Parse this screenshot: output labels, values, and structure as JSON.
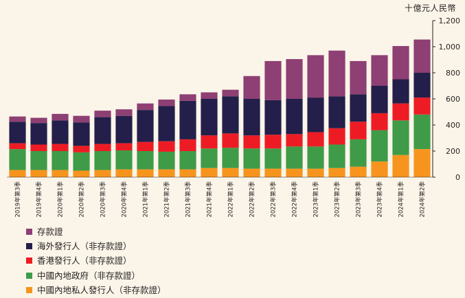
{
  "chart_data": {
    "type": "bar",
    "stacked": true,
    "unit_label": "十億元人民幣",
    "categories": [
      "2019年第3季",
      "2019年第4季",
      "2020年第1季",
      "2020年第2季",
      "2020年第3季",
      "2020年第4季",
      "2021年第1季",
      "2021年第2季",
      "2021年第3季",
      "2021年第4季",
      "2022年第1季",
      "2022年第2季",
      "2022年第3季",
      "2022年第4季",
      "2023年第1季",
      "2023年第2季",
      "2023年第3季",
      "2023年第4季",
      "2024年第1季",
      "2024年第2季"
    ],
    "y_ticks": [
      "0",
      "200",
      "400",
      "600",
      "800",
      "1,000",
      "1,200"
    ],
    "ylim": [
      0,
      1200
    ],
    "grid": false,
    "series": [
      {
        "name": "中國內地私人發行人（非存款證）",
        "color": "#f7941d",
        "values": [
          55,
          55,
          55,
          50,
          55,
          60,
          60,
          60,
          60,
          70,
          70,
          65,
          65,
          65,
          65,
          70,
          80,
          120,
          170,
          215
        ]
      },
      {
        "name": "中國內地政府（非存款證）",
        "color": "#3f9b48",
        "values": [
          160,
          145,
          145,
          140,
          145,
          145,
          140,
          135,
          140,
          150,
          155,
          155,
          155,
          170,
          170,
          180,
          210,
          240,
          265,
          265
        ]
      },
      {
        "name": "香港發行人（非存款證）",
        "color": "#ed1c24",
        "values": [
          45,
          50,
          55,
          50,
          55,
          55,
          70,
          80,
          90,
          100,
          110,
          100,
          105,
          95,
          110,
          125,
          135,
          130,
          130,
          130
        ]
      },
      {
        "name": "海外發行人（非存款證）",
        "color": "#231f4a",
        "values": [
          165,
          165,
          180,
          180,
          205,
          210,
          245,
          270,
          295,
          280,
          285,
          280,
          265,
          270,
          265,
          245,
          210,
          210,
          185,
          190
        ]
      },
      {
        "name": "存款證",
        "color": "#8e3f73",
        "values": [
          40,
          40,
          50,
          50,
          50,
          50,
          50,
          50,
          50,
          50,
          50,
          175,
          300,
          305,
          325,
          350,
          255,
          235,
          255,
          255
        ]
      }
    ],
    "legend_order": [
      "存款證",
      "海外發行人（非存款證）",
      "香港發行人（非存款證）",
      "中國內地政府（非存款證）",
      "中國內地私人發行人（非存款證）"
    ],
    "legend_placement": "bottom-left"
  }
}
